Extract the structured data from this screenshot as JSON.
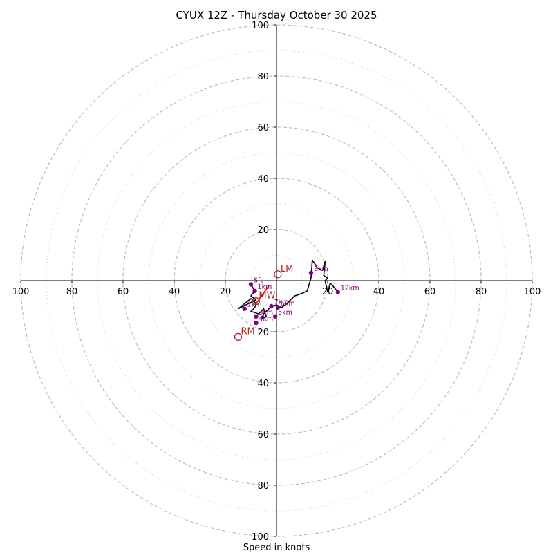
{
  "chart_data": {
    "type": "line",
    "title": "CYUX 12Z - Thursday October 30 2025",
    "xlabel": "Speed in knots",
    "ylabel": "",
    "xlim": [
      -100,
      100
    ],
    "ylim": [
      -100,
      100
    ],
    "rings": [
      20,
      40,
      60,
      80,
      100
    ],
    "minor_rings": [
      10,
      30,
      50,
      70,
      90
    ],
    "x_tick_labels": [
      {
        "value": -100,
        "label": "100"
      },
      {
        "value": -80,
        "label": "80"
      },
      {
        "value": -60,
        "label": "60"
      },
      {
        "value": -40,
        "label": "40"
      },
      {
        "value": -20,
        "label": "20"
      },
      {
        "value": 20,
        "label": "20"
      },
      {
        "value": 40,
        "label": "40"
      },
      {
        "value": 60,
        "label": "60"
      },
      {
        "value": 80,
        "label": "80"
      },
      {
        "value": 100,
        "label": "100"
      }
    ],
    "y_tick_labels": [
      {
        "value": 100,
        "label": "100"
      },
      {
        "value": 80,
        "label": "80"
      },
      {
        "value": 60,
        "label": "60"
      },
      {
        "value": 40,
        "label": "40"
      },
      {
        "value": 20,
        "label": "20"
      },
      {
        "value": -20,
        "label": "20"
      },
      {
        "value": -40,
        "label": "40"
      },
      {
        "value": -60,
        "label": "60"
      },
      {
        "value": -80,
        "label": "80"
      },
      {
        "value": -100,
        "label": "100"
      }
    ],
    "hodograph_line": {
      "name": "wind profile",
      "x": [
        -10,
        -8.5,
        -10,
        -8,
        -15,
        -10,
        -8,
        -8.5,
        -10,
        -7,
        -5,
        -4,
        -6,
        -5,
        -2,
        0,
        2,
        4,
        5,
        7,
        10,
        12,
        13.5,
        14,
        16,
        18,
        19,
        18.5,
        20,
        19,
        20,
        21,
        22,
        24
      ],
      "y": [
        -1.5,
        -4,
        -6,
        -7.5,
        -11,
        -7,
        -9,
        -10.5,
        -12,
        -13,
        -11,
        -14,
        -15,
        -13,
        -10,
        -9.5,
        -10.5,
        -9,
        -8,
        -6,
        -5,
        -4,
        1,
        8,
        5,
        4,
        7.5,
        2,
        1,
        0,
        -4.5,
        -1,
        -2,
        -4.5
      ]
    },
    "height_markers": [
      {
        "label": "Sfc",
        "x": -10,
        "y": -1.5
      },
      {
        "label": "1km",
        "x": -8.5,
        "y": -4
      },
      {
        "label": "2km",
        "x": -12.5,
        "y": -11
      },
      {
        "label": "3km",
        "x": -8,
        "y": -14
      },
      {
        "label": "4km",
        "x": -8,
        "y": -16.5
      },
      {
        "label": "5km",
        "x": -0.5,
        "y": -14
      },
      {
        "label": "6km",
        "x": 0.5,
        "y": -10.5
      },
      {
        "label": "7km",
        "x": -2,
        "y": -10
      },
      {
        "label": "8km",
        "x": 13.5,
        "y": 3
      },
      {
        "label": "12km",
        "x": 24,
        "y": -4.5
      }
    ],
    "storm_motion": [
      {
        "label": "LM",
        "x": 0.5,
        "y": 2.5
      },
      {
        "label": "MW",
        "x": -8,
        "y": -8
      },
      {
        "label": "RM",
        "x": -15,
        "y": -22
      }
    ],
    "shear_vector": {
      "x": [
        -8,
        -3
      ],
      "y": [
        -9,
        -2
      ]
    },
    "colors": {
      "line": "#000000",
      "markers": "#800080",
      "storm_motion": "#b22222",
      "shear": "#e31a1c",
      "major_ring": "#b8b8b8",
      "minor_ring": "#d0d0d0",
      "axis": "#000000"
    }
  }
}
